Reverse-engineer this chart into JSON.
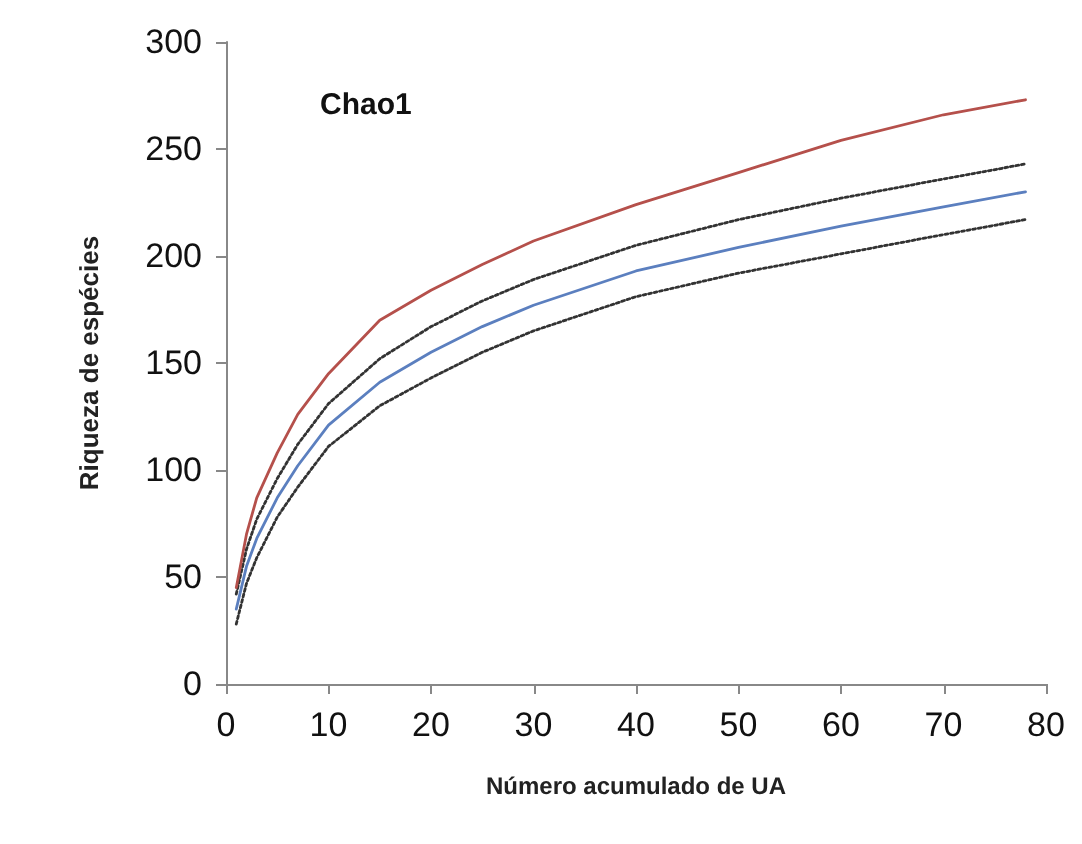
{
  "chart_data": {
    "type": "line",
    "title": "Chao1",
    "xlabel": "Número acumulado de UA",
    "ylabel": "Riqueza de espécies",
    "x": [
      1,
      2,
      3,
      5,
      7,
      10,
      15,
      20,
      25,
      30,
      40,
      50,
      60,
      70,
      78
    ],
    "series": [
      {
        "color": "#b5504b",
        "line_style": "solid",
        "values": [
          45,
          70,
          87,
          108,
          126,
          145,
          170,
          184,
          196,
          207,
          224,
          239,
          254,
          266,
          273
        ]
      },
      {
        "color": "#333333",
        "line_style": "dotted",
        "values": [
          42,
          63,
          77,
          96,
          112,
          131,
          152,
          167,
          179,
          189,
          205,
          217,
          227,
          236,
          243
        ]
      },
      {
        "color": "#5b7fbf",
        "line_style": "solid",
        "values": [
          35,
          55,
          68,
          87,
          102,
          121,
          141,
          155,
          167,
          177,
          193,
          204,
          214,
          223,
          230
        ]
      },
      {
        "color": "#333333",
        "line_style": "dotted",
        "values": [
          28,
          47,
          59,
          78,
          92,
          111,
          130,
          143,
          155,
          165,
          181,
          192,
          201,
          210,
          217
        ]
      }
    ],
    "xlim": [
      0,
      80
    ],
    "xticks": [
      0,
      10,
      20,
      30,
      40,
      50,
      60,
      70,
      80
    ],
    "ylim": [
      0,
      300
    ],
    "yticks": [
      0,
      50,
      100,
      150,
      200,
      250,
      300
    ],
    "grid": false,
    "marker": "none"
  }
}
